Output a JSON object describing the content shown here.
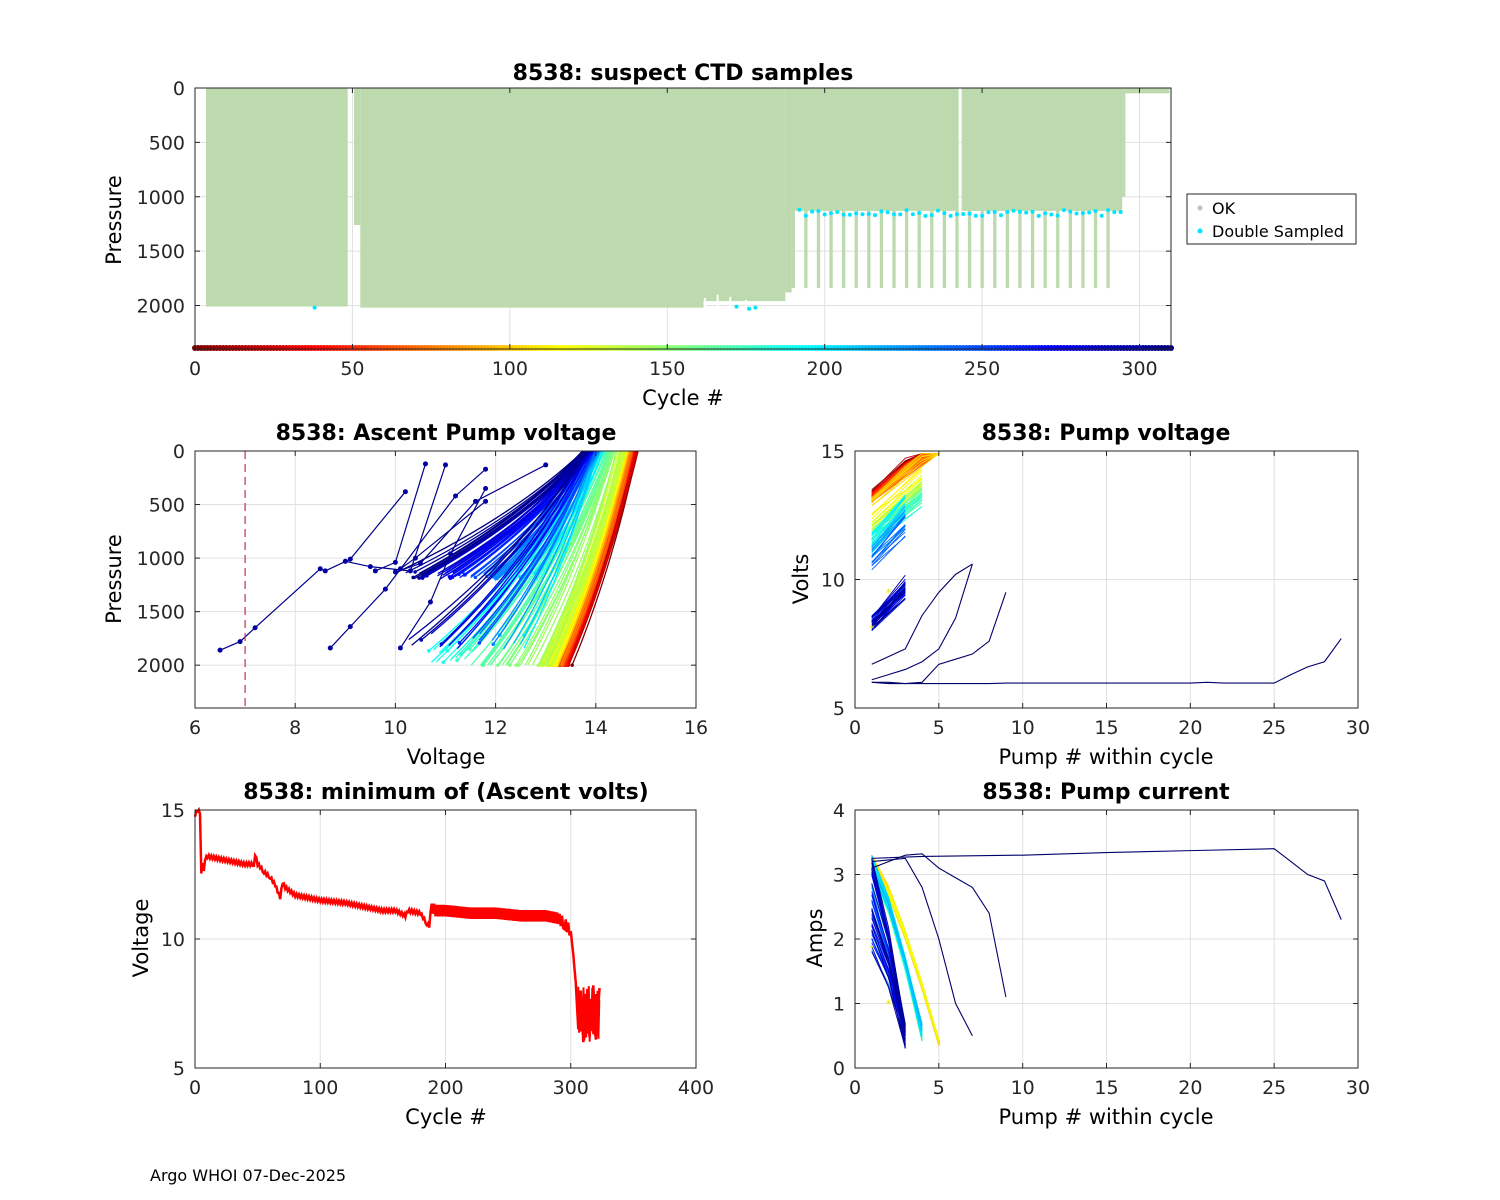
{
  "footer": "Argo WHOI 07-Dec-2025",
  "chart_data": [
    {
      "id": "ctd",
      "type": "scatter",
      "title": "8538: suspect CTD samples",
      "xlabel": "Cycle #",
      "ylabel": "Pressure",
      "xlim": [
        0,
        310
      ],
      "ylim": [
        0,
        2400
      ],
      "y_reversed": true,
      "xticks": [
        0,
        50,
        100,
        150,
        200,
        250,
        300
      ],
      "yticks": [
        0,
        500,
        1000,
        1500,
        2000
      ],
      "grid": true,
      "legend": {
        "position": "outside-right",
        "entries": [
          "OK",
          "Double Sampled"
        ]
      },
      "colors": {
        "ok": "#bddaae",
        "double_sampled": "#00e5ff",
        "ok_marker": "#c0c0c0"
      },
      "ok_profiles": {
        "segments": [
          {
            "cycles": [
              4,
              48
            ],
            "max_pressure": 2010
          },
          {
            "cycles": [
              51,
              52
            ],
            "max_pressure": 1260
          },
          {
            "cycles": [
              53,
              161
            ],
            "max_pressure": 2020
          },
          {
            "cycles": [
              162,
              187
            ],
            "max_pressure": 1960
          },
          {
            "cycles": [
              188,
              189
            ],
            "max_pressure": 1880
          },
          {
            "cycles": [
              190,
              294
            ],
            "max_pressure": 1130
          },
          {
            "cycles": [
              295,
              295
            ],
            "max_pressure": 1000
          }
        ],
        "deep_every_4th": {
          "cycles": [
            190,
            292
          ],
          "max_pressure": 1840
        },
        "shallow_tail": {
          "cycles": [
            296,
            309
          ],
          "max_pressure": 50
        },
        "gaps": [
          49,
          50,
          243
        ]
      },
      "double_sampled_pressure": [
        1140,
        2020
      ]
    },
    {
      "id": "ascent",
      "type": "line",
      "title": "8538: Ascent Pump voltage",
      "xlabel": "Voltage",
      "ylabel": "Pressure",
      "xlim": [
        6,
        16
      ],
      "ylim": [
        0,
        2400
      ],
      "y_reversed": true,
      "xticks": [
        6,
        8,
        10,
        12,
        14,
        16
      ],
      "yticks": [
        0,
        500,
        1000,
        1500,
        2000
      ],
      "grid": true,
      "threshold_line": {
        "voltage": 7,
        "color": "#c0304a"
      },
      "series_summary": {
        "early_cycles": {
          "top_voltage": [
            14.8,
            14.5
          ],
          "bottom_voltage": [
            13.4,
            13.0
          ],
          "bottom_pressure": 2000
        },
        "mid_cycles": {
          "top_voltage": [
            14.4,
            14.0
          ],
          "bottom_voltage": [
            12.9,
            10.6
          ],
          "bottom_pressure": 2000
        },
        "late_cycles": {
          "top_voltage": [
            14.1,
            13.8
          ],
          "bottom_voltage": [
            12.8,
            10.2
          ],
          "bottom_pressure": 1120
        }
      },
      "outlier_profiles": [
        {
          "v": [
            6.5,
            6.9,
            7.2,
            8.5,
            8.6,
            9.1,
            10.2
          ],
          "p": [
            1860,
            1780,
            1650,
            1100,
            1120,
            1010,
            380
          ]
        },
        {
          "v": [
            8.7,
            9.1,
            9.8,
            11.2,
            11.8
          ],
          "p": [
            1840,
            1640,
            1290,
            420,
            170
          ]
        },
        {
          "v": [
            10.1,
            10.7,
            11.1,
            11.8
          ],
          "p": [
            1840,
            1410,
            960,
            350
          ]
        },
        {
          "v": [
            9.0,
            9.5,
            10.3,
            11.0
          ],
          "p": [
            1030,
            1080,
            1120,
            130
          ]
        },
        {
          "v": [
            10.1,
            10.4,
            11.8
          ],
          "p": [
            1100,
            1000,
            470
          ]
        },
        {
          "v": [
            9.6,
            10.0,
            10.6
          ],
          "p": [
            1120,
            1040,
            120
          ]
        },
        {
          "v": [
            10.0,
            10.5,
            11.6,
            13.0
          ],
          "p": [
            1130,
            1050,
            470,
            130
          ]
        }
      ]
    },
    {
      "id": "pumpv",
      "type": "line",
      "title": "8538: Pump voltage",
      "xlabel": "Pump # within cycle",
      "ylabel": "Volts",
      "xlim": [
        0,
        30
      ],
      "ylim": [
        5,
        15
      ],
      "xticks": [
        0,
        5,
        10,
        15,
        20,
        25,
        30
      ],
      "yticks": [
        5,
        10,
        15
      ],
      "grid": true,
      "long_profiles": [
        {
          "pump": [
            1,
            2,
            3,
            4,
            5,
            6,
            7,
            8,
            9,
            10,
            15,
            20,
            21,
            22,
            25,
            26,
            27,
            28,
            29
          ],
          "volts": [
            6.0,
            5.95,
            5.95,
            5.95,
            5.95,
            5.95,
            5.95,
            5.95,
            5.97,
            5.97,
            5.97,
            5.97,
            6.0,
            5.97,
            5.97,
            6.3,
            6.6,
            6.8,
            7.7
          ]
        },
        {
          "pump": [
            1,
            2,
            3,
            4,
            5,
            6,
            7
          ],
          "volts": [
            6.7,
            7.0,
            7.3,
            8.6,
            9.5,
            10.2,
            10.6
          ]
        },
        {
          "pump": [
            1,
            2,
            3,
            4,
            5,
            6,
            7,
            8,
            9
          ],
          "volts": [
            6.0,
            6.0,
            5.95,
            6.0,
            6.7,
            6.9,
            7.1,
            7.6,
            9.5
          ]
        },
        {
          "pump": [
            1,
            2,
            3,
            4,
            5,
            6,
            7
          ],
          "volts": [
            6.1,
            6.3,
            6.5,
            6.8,
            7.3,
            8.5,
            10.6
          ]
        }
      ]
    },
    {
      "id": "minv",
      "type": "line",
      "title": "8538: minimum of (Ascent volts)",
      "xlabel": "Cycle #",
      "ylabel": "Voltage",
      "xlim": [
        0,
        400
      ],
      "ylim": [
        5,
        15
      ],
      "xticks": [
        0,
        100,
        200,
        300,
        400
      ],
      "yticks": [
        5,
        10,
        15
      ],
      "grid": true,
      "color": "#ff0000",
      "x": [
        0,
        2,
        4,
        5,
        6,
        7,
        8,
        10,
        20,
        40,
        47,
        48,
        50,
        52,
        55,
        60,
        64,
        68,
        70,
        72,
        80,
        90,
        100,
        120,
        140,
        150,
        160,
        168,
        170,
        180,
        185,
        187,
        188,
        190,
        192,
        200,
        220,
        240,
        260,
        280,
        290,
        295,
        300,
        302,
        304,
        306,
        308,
        310,
        312,
        315,
        318,
        320,
        323
      ],
      "y": [
        14.8,
        15.0,
        14.9,
        12.6,
        13.0,
        12.7,
        13.1,
        13.2,
        13.1,
        12.9,
        12.9,
        13.3,
        12.9,
        12.8,
        12.6,
        12.4,
        12.1,
        11.6,
        12.2,
        12.0,
        11.7,
        11.6,
        11.5,
        11.4,
        11.2,
        11.1,
        11.1,
        10.9,
        11.1,
        11.0,
        10.6,
        10.5,
        11.1,
        11.2,
        11.1,
        11.1,
        11.0,
        11.0,
        10.9,
        10.9,
        10.8,
        10.6,
        10.3,
        9.4,
        8.3,
        6.5,
        8.0,
        6.0,
        7.8,
        6.2,
        8.2,
        6.1,
        8.1
      ]
    },
    {
      "id": "pumpc",
      "type": "line",
      "title": "8538: Pump current",
      "xlabel": "Pump # within cycle",
      "ylabel": "Amps",
      "xlim": [
        0,
        30
      ],
      "ylim": [
        0,
        4
      ],
      "xticks": [
        0,
        5,
        10,
        15,
        20,
        25,
        30
      ],
      "yticks": [
        0,
        1,
        2,
        3,
        4
      ],
      "grid": true,
      "long_profiles": [
        {
          "pump": [
            1,
            4,
            10,
            15,
            20,
            25,
            26,
            27,
            28,
            29
          ],
          "amps": [
            3.25,
            3.28,
            3.3,
            3.34,
            3.37,
            3.4,
            3.2,
            3.0,
            2.9,
            2.3
          ]
        },
        {
          "pump": [
            1,
            3,
            4,
            5,
            6,
            7
          ],
          "amps": [
            3.2,
            3.25,
            2.8,
            2.0,
            1.0,
            0.5
          ]
        },
        {
          "pump": [
            1,
            2,
            3,
            4,
            5,
            6,
            7,
            8,
            9
          ],
          "amps": [
            3.1,
            3.2,
            3.3,
            3.32,
            3.1,
            2.95,
            2.8,
            2.4,
            1.1
          ]
        }
      ]
    }
  ]
}
